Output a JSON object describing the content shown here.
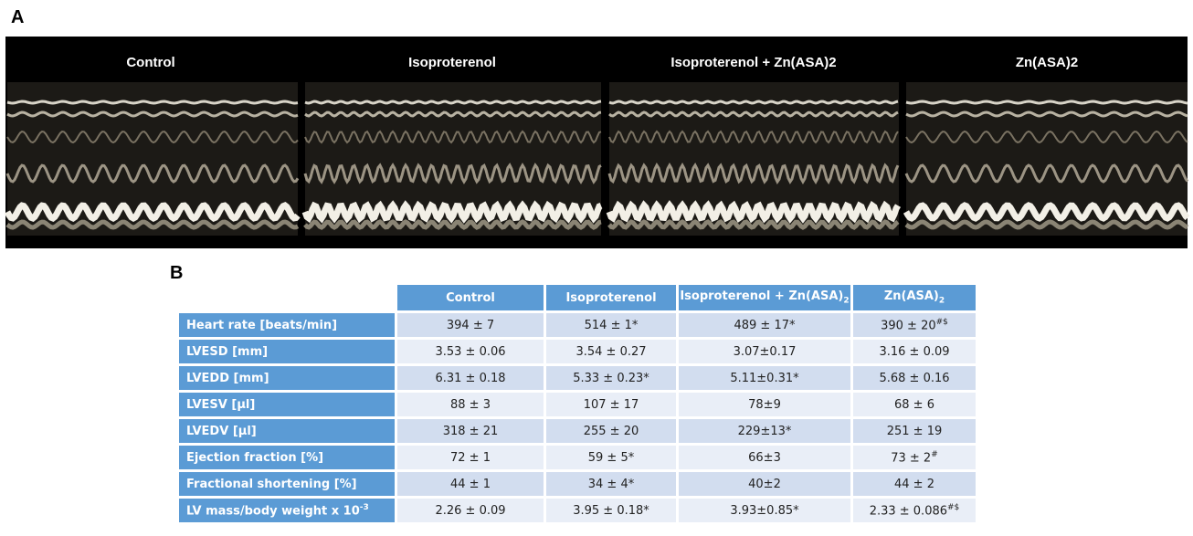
{
  "panel_a": {
    "label": "A",
    "titles": [
      "Control",
      "Isoproterenol",
      "Isoproterenol + Zn(ASA)2",
      "Zn(ASA)2"
    ]
  },
  "panel_b": {
    "label": "B",
    "table": {
      "header": [
        "Control",
        "Isoproterenol",
        {
          "text": "Isoproterenol + Zn(ASA)",
          "sub": "2"
        },
        {
          "text": "Zn(ASA)",
          "sub": "2"
        }
      ],
      "rows": [
        {
          "label": "Heart rate [beats/min]",
          "cells": [
            "394 ± 7",
            "514 ± 1*",
            "489 ± 17*",
            {
              "text": "390 ± 20",
              "sup": "#$"
            }
          ]
        },
        {
          "label": "LVESD [mm]",
          "cells": [
            "3.53 ± 0.06",
            "3.54 ± 0.27",
            "3.07±0.17",
            "3.16 ± 0.09"
          ]
        },
        {
          "label": "LVEDD [mm]",
          "cells": [
            "6.31 ± 0.18",
            "5.33 ± 0.23*",
            "5.11±0.31*",
            "5.68 ± 0.16"
          ]
        },
        {
          "label": "LVESV [µl]",
          "cells": [
            "88 ± 3",
            "107 ± 17",
            "78±9",
            "68 ± 6"
          ]
        },
        {
          "label": "LVEDV [µl]",
          "cells": [
            "318 ± 21",
            "255 ± 20",
            "229±13*",
            "251 ± 19"
          ]
        },
        {
          "label": "Ejection fraction [%]",
          "cells": [
            "72 ± 1",
            "59 ± 5*",
            "66±3",
            {
              "text": "73 ± 2",
              "sup": "#"
            }
          ]
        },
        {
          "label": "Fractional shortening [%]",
          "cells": [
            "44 ± 1",
            "34 ± 4*",
            "40±2",
            "44 ± 2"
          ]
        },
        {
          "label": {
            "text": "LV mass/body weight x 10",
            "sup": "-3"
          },
          "cells": [
            "2.26 ± 0.09",
            "3.95 ± 0.18*",
            "3.93±0.85*",
            {
              "text": "2.33 ± 0.086",
              "sup": "#$"
            }
          ]
        }
      ]
    }
  }
}
